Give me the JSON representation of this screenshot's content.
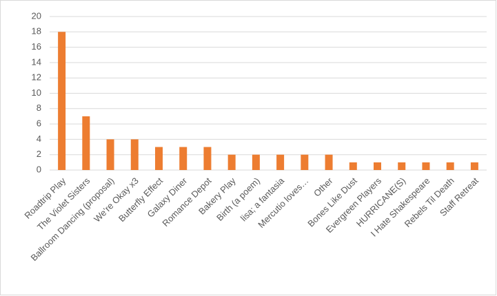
{
  "chart_data": {
    "type": "bar",
    "categories": [
      "Roadtrip Play",
      "The Violet Sisters",
      "Ballroom Dancing (proposal)",
      "We’re Okay x3",
      "Butterfly Effect",
      "Galaxy Diner",
      "Romance Depot",
      "Bakery Play",
      "Birth (a poem)",
      "lisa; a fantasia",
      "Mercutio loves…",
      "Other",
      "Bones Like Dust",
      "Evergreen Players",
      "HURRICANE(S)",
      "I Hate Shakespeare",
      "Rebels Til Death",
      "Staff Retreat"
    ],
    "values": [
      18,
      7,
      4,
      4,
      3,
      3,
      3,
      2,
      2,
      2,
      2,
      2,
      1,
      1,
      1,
      1,
      1,
      1
    ],
    "color": "#ed7d31",
    "ylim": [
      0,
      20
    ],
    "yticks": [
      0,
      2,
      4,
      6,
      8,
      10,
      12,
      14,
      16,
      18,
      20
    ],
    "grid": true
  }
}
